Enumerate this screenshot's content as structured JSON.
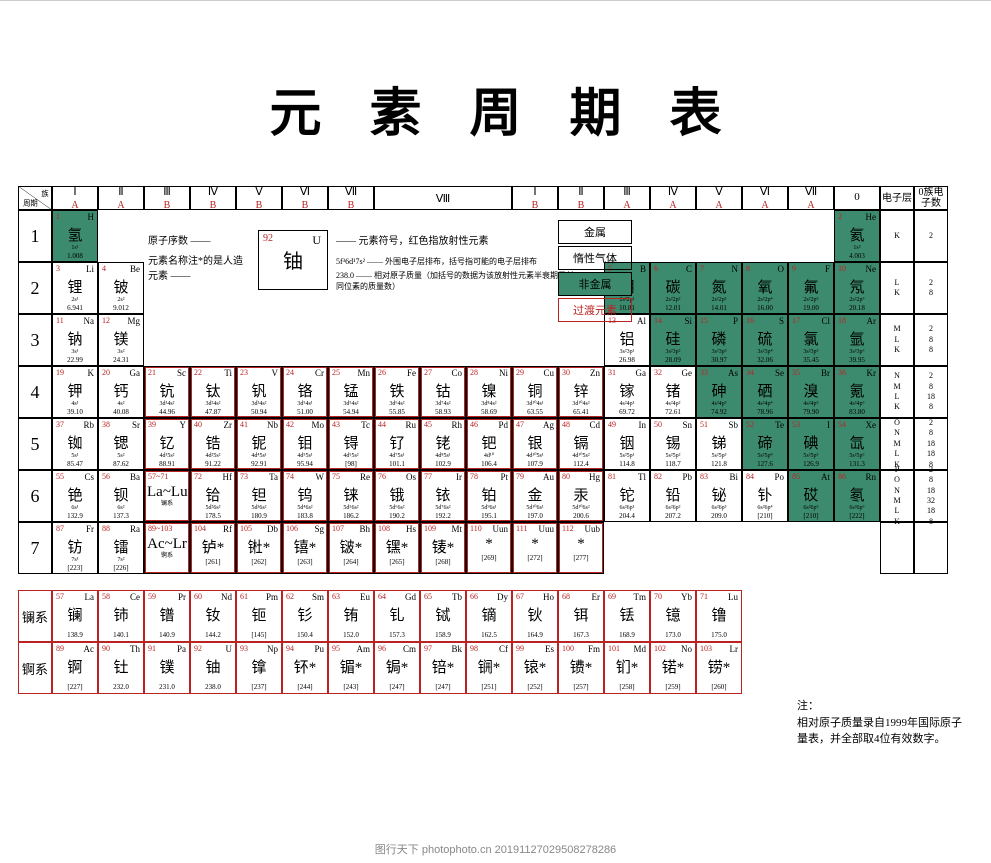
{
  "title": "元素周期表",
  "corner_top": "族",
  "corner_bottom": "周期",
  "shell_hdr1": "电子层",
  "shell_hdr2": "0族电子数",
  "legend": {
    "sample_num": "92",
    "sample_sym": "U",
    "sample_cn": "铀",
    "l1_left": "原子序数",
    "l1_right": "元素符号，红色指放射性元素",
    "l2_left": "元素名称注*的是人造元素",
    "l3_right": "外围电子层排布，括号指可能的电子层排布",
    "l4_right": "相对原子质量（加括号的数据为该放射性元素半衰期最长同位素的质量数）",
    "l3_left_a": "5f³6d¹7s²",
    "l3_left_b": "238.0",
    "cat_metal": "金属",
    "cat_noble": "惰性气体",
    "cat_nonmetal": "非金属",
    "cat_transition": "过渡元素"
  },
  "group_headers": [
    {
      "roman": "Ⅰ",
      "ab": "A"
    },
    {
      "roman": "Ⅱ",
      "ab": "A"
    },
    {
      "roman": "Ⅲ",
      "ab": "B"
    },
    {
      "roman": "Ⅳ",
      "ab": "B"
    },
    {
      "roman": "Ⅴ",
      "ab": "B"
    },
    {
      "roman": "Ⅵ",
      "ab": "B"
    },
    {
      "roman": "Ⅶ",
      "ab": "B"
    },
    {
      "roman": "Ⅷ",
      "ab": ""
    },
    {
      "roman": "",
      "ab": ""
    },
    {
      "roman": "",
      "ab": ""
    },
    {
      "roman": "Ⅰ",
      "ab": "B"
    },
    {
      "roman": "Ⅱ",
      "ab": "B"
    },
    {
      "roman": "Ⅲ",
      "ab": "A"
    },
    {
      "roman": "Ⅳ",
      "ab": "A"
    },
    {
      "roman": "Ⅴ",
      "ab": "A"
    },
    {
      "roman": "Ⅵ",
      "ab": "A"
    },
    {
      "roman": "Ⅶ",
      "ab": "A"
    },
    {
      "roman": "0",
      "ab": ""
    }
  ],
  "periods": [
    "1",
    "2",
    "3",
    "4",
    "5",
    "6",
    "7"
  ],
  "shells": [
    {
      "layers": "K",
      "counts": "2"
    },
    {
      "layers": "L\nK",
      "counts": "2\n8"
    },
    {
      "layers": "M\nL\nK",
      "counts": "2\n8\n8"
    },
    {
      "layers": "N\nM\nL\nK",
      "counts": "2\n8\n18\n8"
    },
    {
      "layers": "O\nN\nM\nL\nK",
      "counts": "2\n8\n18\n18\n8"
    },
    {
      "layers": "P\nO\nN\nM\nL\nK",
      "counts": "2\n8\n18\n32\n18\n8"
    },
    {
      "layers": "",
      "counts": ""
    }
  ],
  "elements": {
    "1-1": {
      "n": "1",
      "s": "H",
      "cn": "氢",
      "cfg": "1s¹",
      "m": "1.008",
      "cat": "nonmetal"
    },
    "1-18": {
      "n": "2",
      "s": "He",
      "cn": "氦",
      "cfg": "1s²",
      "m": "4.003",
      "cat": "nonmetal"
    },
    "2-1": {
      "n": "3",
      "s": "Li",
      "cn": "锂",
      "cfg": "2s¹",
      "m": "6.941"
    },
    "2-2": {
      "n": "4",
      "s": "Be",
      "cn": "铍",
      "cfg": "2s²",
      "m": "9.012"
    },
    "2-13": {
      "n": "5",
      "s": "B",
      "cn": "硼",
      "cfg": "2s²2p¹",
      "m": "10.81",
      "cat": "nonmetal"
    },
    "2-14": {
      "n": "6",
      "s": "C",
      "cn": "碳",
      "cfg": "2s²2p²",
      "m": "12.01",
      "cat": "nonmetal"
    },
    "2-15": {
      "n": "7",
      "s": "N",
      "cn": "氮",
      "cfg": "2s²2p³",
      "m": "14.01",
      "cat": "nonmetal"
    },
    "2-16": {
      "n": "8",
      "s": "O",
      "cn": "氧",
      "cfg": "2s²2p⁴",
      "m": "16.00",
      "cat": "nonmetal"
    },
    "2-17": {
      "n": "9",
      "s": "F",
      "cn": "氟",
      "cfg": "2s²2p⁵",
      "m": "19.00",
      "cat": "nonmetal"
    },
    "2-18": {
      "n": "10",
      "s": "Ne",
      "cn": "氖",
      "cfg": "2s²2p⁶",
      "m": "20.18",
      "cat": "nonmetal"
    },
    "3-1": {
      "n": "11",
      "s": "Na",
      "cn": "钠",
      "cfg": "3s¹",
      "m": "22.99"
    },
    "3-2": {
      "n": "12",
      "s": "Mg",
      "cn": "镁",
      "cfg": "3s²",
      "m": "24.31"
    },
    "3-13": {
      "n": "13",
      "s": "Al",
      "cn": "铝",
      "cfg": "3s²3p¹",
      "m": "26.98"
    },
    "3-14": {
      "n": "14",
      "s": "Si",
      "cn": "硅",
      "cfg": "3s²3p²",
      "m": "28.09",
      "cat": "nonmetal"
    },
    "3-15": {
      "n": "15",
      "s": "P",
      "cn": "磷",
      "cfg": "3s²3p³",
      "m": "30.97",
      "cat": "nonmetal"
    },
    "3-16": {
      "n": "16",
      "s": "S",
      "cn": "硫",
      "cfg": "3s²3p⁴",
      "m": "32.06",
      "cat": "nonmetal"
    },
    "3-17": {
      "n": "17",
      "s": "Cl",
      "cn": "氯",
      "cfg": "3s²3p⁵",
      "m": "35.45",
      "cat": "nonmetal"
    },
    "3-18": {
      "n": "18",
      "s": "Ar",
      "cn": "氩",
      "cfg": "3s²3p⁶",
      "m": "39.95",
      "cat": "nonmetal"
    },
    "4-1": {
      "n": "19",
      "s": "K",
      "cn": "钾",
      "cfg": "4s¹",
      "m": "39.10"
    },
    "4-2": {
      "n": "20",
      "s": "Ga",
      "cn": "钙",
      "cfg": "4s²",
      "m": "40.08"
    },
    "4-3": {
      "n": "21",
      "s": "Sc",
      "cn": "钪",
      "cfg": "3d¹4s²",
      "m": "44.96",
      "cat": "transition"
    },
    "4-4": {
      "n": "22",
      "s": "Ti",
      "cn": "钛",
      "cfg": "3d²4s²",
      "m": "47.87",
      "cat": "transition"
    },
    "4-5": {
      "n": "23",
      "s": "V",
      "cn": "钒",
      "cfg": "3d³4s²",
      "m": "50.94",
      "cat": "transition"
    },
    "4-6": {
      "n": "24",
      "s": "Cr",
      "cn": "铬",
      "cfg": "3d⁵4s¹",
      "m": "51.00",
      "cat": "transition"
    },
    "4-7": {
      "n": "25",
      "s": "Mn",
      "cn": "锰",
      "cfg": "3d⁵4s²",
      "m": "54.94",
      "cat": "transition"
    },
    "4-8": {
      "n": "26",
      "s": "Fe",
      "cn": "铁",
      "cfg": "3d⁶4s²",
      "m": "55.85",
      "cat": "transition"
    },
    "4-9": {
      "n": "27",
      "s": "Co",
      "cn": "钴",
      "cfg": "3d⁷4s²",
      "m": "58.93",
      "cat": "transition"
    },
    "4-10": {
      "n": "28",
      "s": "Ni",
      "cn": "镍",
      "cfg": "3d⁸4s²",
      "m": "58.69",
      "cat": "transition"
    },
    "4-11": {
      "n": "29",
      "s": "Cu",
      "cn": "铜",
      "cfg": "3d¹⁰4s¹",
      "m": "63.55",
      "cat": "transition"
    },
    "4-12": {
      "n": "30",
      "s": "Zn",
      "cn": "锌",
      "cfg": "3d¹⁰4s²",
      "m": "65.41",
      "cat": "transition"
    },
    "4-13": {
      "n": "31",
      "s": "Ga",
      "cn": "镓",
      "cfg": "4s²4p¹",
      "m": "69.72"
    },
    "4-14": {
      "n": "32",
      "s": "Ge",
      "cn": "锗",
      "cfg": "4s²4p²",
      "m": "72.61"
    },
    "4-15": {
      "n": "33",
      "s": "As",
      "cn": "砷",
      "cfg": "4s²4p³",
      "m": "74.92",
      "cat": "nonmetal"
    },
    "4-16": {
      "n": "34",
      "s": "Se",
      "cn": "硒",
      "cfg": "4s²4p⁴",
      "m": "78.96",
      "cat": "nonmetal"
    },
    "4-17": {
      "n": "35",
      "s": "Br",
      "cn": "溴",
      "cfg": "4s²4p⁵",
      "m": "79.90",
      "cat": "nonmetal"
    },
    "4-18": {
      "n": "36",
      "s": "Kr",
      "cn": "氪",
      "cfg": "4s²4p⁶",
      "m": "83.80",
      "cat": "nonmetal"
    },
    "5-1": {
      "n": "37",
      "s": "Rb",
      "cn": "铷",
      "cfg": "5s¹",
      "m": "85.47"
    },
    "5-2": {
      "n": "38",
      "s": "Sr",
      "cn": "锶",
      "cfg": "5s²",
      "m": "87.62"
    },
    "5-3": {
      "n": "39",
      "s": "Y",
      "cn": "钇",
      "cfg": "4d¹5s²",
      "m": "88.91",
      "cat": "transition"
    },
    "5-4": {
      "n": "40",
      "s": "Zr",
      "cn": "锆",
      "cfg": "4d²5s²",
      "m": "91.22",
      "cat": "transition"
    },
    "5-5": {
      "n": "41",
      "s": "Nb",
      "cn": "铌",
      "cfg": "4d⁴5s¹",
      "m": "92.91",
      "cat": "transition"
    },
    "5-6": {
      "n": "42",
      "s": "Mo",
      "cn": "钼",
      "cfg": "4d⁵5s¹",
      "m": "95.94",
      "cat": "transition"
    },
    "5-7": {
      "n": "43",
      "s": "Tc",
      "cn": "锝",
      "cfg": "4d⁵5s²",
      "m": "[98]",
      "cat": "transition"
    },
    "5-8": {
      "n": "44",
      "s": "Ru",
      "cn": "钌",
      "cfg": "4d⁷5s¹",
      "m": "101.1",
      "cat": "transition"
    },
    "5-9": {
      "n": "45",
      "s": "Rh",
      "cn": "铑",
      "cfg": "4d⁸5s¹",
      "m": "102.9",
      "cat": "transition"
    },
    "5-10": {
      "n": "46",
      "s": "Pd",
      "cn": "钯",
      "cfg": "4d¹⁰",
      "m": "106.4",
      "cat": "transition"
    },
    "5-11": {
      "n": "47",
      "s": "Ag",
      "cn": "银",
      "cfg": "4d¹⁰5s¹",
      "m": "107.9",
      "cat": "transition"
    },
    "5-12": {
      "n": "48",
      "s": "Cd",
      "cn": "镉",
      "cfg": "4d¹⁰5s²",
      "m": "112.4",
      "cat": "transition"
    },
    "5-13": {
      "n": "49",
      "s": "In",
      "cn": "铟",
      "cfg": "5s²5p¹",
      "m": "114.8"
    },
    "5-14": {
      "n": "50",
      "s": "Sn",
      "cn": "锡",
      "cfg": "5s²5p²",
      "m": "118.7"
    },
    "5-15": {
      "n": "51",
      "s": "Sb",
      "cn": "锑",
      "cfg": "5s²5p³",
      "m": "121.8"
    },
    "5-16": {
      "n": "52",
      "s": "Te",
      "cn": "碲",
      "cfg": "5s²5p⁴",
      "m": "127.6",
      "cat": "nonmetal"
    },
    "5-17": {
      "n": "53",
      "s": "I",
      "cn": "碘",
      "cfg": "5s²5p⁵",
      "m": "126.9",
      "cat": "nonmetal"
    },
    "5-18": {
      "n": "54",
      "s": "Xe",
      "cn": "氙",
      "cfg": "5s²5p⁶",
      "m": "131.3",
      "cat": "nonmetal"
    },
    "6-1": {
      "n": "55",
      "s": "Cs",
      "cn": "铯",
      "cfg": "6s¹",
      "m": "132.9"
    },
    "6-2": {
      "n": "56",
      "s": "Ba",
      "cn": "钡",
      "cfg": "6s²",
      "m": "137.3"
    },
    "6-3": {
      "n": "57~71",
      "s": "",
      "cn": "La~Lu",
      "cfg": "镧系",
      "m": "",
      "cat": "transition"
    },
    "6-4": {
      "n": "72",
      "s": "Hf",
      "cn": "铪",
      "cfg": "5d²6s²",
      "m": "178.5",
      "cat": "transition"
    },
    "6-5": {
      "n": "73",
      "s": "Ta",
      "cn": "钽",
      "cfg": "5d³6s²",
      "m": "180.9",
      "cat": "transition"
    },
    "6-6": {
      "n": "74",
      "s": "W",
      "cn": "钨",
      "cfg": "5d⁴6s²",
      "m": "183.8",
      "cat": "transition"
    },
    "6-7": {
      "n": "75",
      "s": "Re",
      "cn": "铼",
      "cfg": "5d⁵6s²",
      "m": "186.2",
      "cat": "transition"
    },
    "6-8": {
      "n": "76",
      "s": "Os",
      "cn": "锇",
      "cfg": "5d⁶6s²",
      "m": "190.2",
      "cat": "transition"
    },
    "6-9": {
      "n": "77",
      "s": "Ir",
      "cn": "铱",
      "cfg": "5d⁷6s²",
      "m": "192.2",
      "cat": "transition"
    },
    "6-10": {
      "n": "78",
      "s": "Pt",
      "cn": "铂",
      "cfg": "5d⁹6s¹",
      "m": "195.1",
      "cat": "transition"
    },
    "6-11": {
      "n": "79",
      "s": "Au",
      "cn": "金",
      "cfg": "5d¹⁰6s¹",
      "m": "197.0",
      "cat": "transition"
    },
    "6-12": {
      "n": "80",
      "s": "Hg",
      "cn": "汞",
      "cfg": "5d¹⁰6s²",
      "m": "200.6",
      "cat": "transition"
    },
    "6-13": {
      "n": "81",
      "s": "Tl",
      "cn": "铊",
      "cfg": "6s²6p¹",
      "m": "204.4"
    },
    "6-14": {
      "n": "82",
      "s": "Pb",
      "cn": "铅",
      "cfg": "6s²6p²",
      "m": "207.2"
    },
    "6-15": {
      "n": "83",
      "s": "Bi",
      "cn": "铋",
      "cfg": "6s²6p³",
      "m": "209.0"
    },
    "6-16": {
      "n": "84",
      "s": "Po",
      "cn": "钋",
      "cfg": "6s²6p⁴",
      "m": "[210]"
    },
    "6-17": {
      "n": "85",
      "s": "At",
      "cn": "砹",
      "cfg": "6s²6p⁵",
      "m": "[210]",
      "cat": "nonmetal"
    },
    "6-18": {
      "n": "86",
      "s": "Rn",
      "cn": "氡",
      "cfg": "6s²6p⁶",
      "m": "[222]",
      "cat": "nonmetal"
    },
    "7-1": {
      "n": "87",
      "s": "Fr",
      "cn": "钫",
      "cfg": "7s¹",
      "m": "[223]"
    },
    "7-2": {
      "n": "88",
      "s": "Ra",
      "cn": "镭",
      "cfg": "7s²",
      "m": "[226]"
    },
    "7-3": {
      "n": "89~103",
      "s": "",
      "cn": "Ac~Lr",
      "cfg": "锕系",
      "m": "",
      "cat": "transition"
    },
    "7-4": {
      "n": "104",
      "s": "Rf",
      "cn": "𬬻*",
      "cfg": "",
      "m": "[261]",
      "cat": "transition"
    },
    "7-5": {
      "n": "105",
      "s": "Db",
      "cn": "𬭊*",
      "cfg": "",
      "m": "[262]",
      "cat": "transition"
    },
    "7-6": {
      "n": "106",
      "s": "Sg",
      "cn": "𬭳*",
      "cfg": "",
      "m": "[263]",
      "cat": "transition"
    },
    "7-7": {
      "n": "107",
      "s": "Bh",
      "cn": "𬭛*",
      "cfg": "",
      "m": "[264]",
      "cat": "transition"
    },
    "7-8": {
      "n": "108",
      "s": "Hs",
      "cn": "𬭶*",
      "cfg": "",
      "m": "[265]",
      "cat": "transition"
    },
    "7-9": {
      "n": "109",
      "s": "Mt",
      "cn": "鿏*",
      "cfg": "",
      "m": "[268]",
      "cat": "transition"
    },
    "7-10": {
      "n": "110",
      "s": "Uun",
      "cn": "*",
      "cfg": "",
      "m": "[269]",
      "cat": "transition"
    },
    "7-11": {
      "n": "111",
      "s": "Uuu",
      "cn": "*",
      "cfg": "",
      "m": "[272]",
      "cat": "transition"
    },
    "7-12": {
      "n": "112",
      "s": "Uub",
      "cn": "*",
      "cfg": "",
      "m": "[277]",
      "cat": "transition"
    }
  },
  "lan_label": "镧系",
  "act_label": "锕系",
  "lan": [
    {
      "n": "57",
      "s": "La",
      "cn": "镧",
      "m": "138.9"
    },
    {
      "n": "58",
      "s": "Ce",
      "cn": "铈",
      "m": "140.1"
    },
    {
      "n": "59",
      "s": "Pr",
      "cn": "镨",
      "m": "140.9"
    },
    {
      "n": "60",
      "s": "Nd",
      "cn": "钕",
      "m": "144.2"
    },
    {
      "n": "61",
      "s": "Pm",
      "cn": "钷",
      "m": "[145]"
    },
    {
      "n": "62",
      "s": "Sm",
      "cn": "钐",
      "m": "150.4"
    },
    {
      "n": "63",
      "s": "Eu",
      "cn": "铕",
      "m": "152.0"
    },
    {
      "n": "64",
      "s": "Gd",
      "cn": "钆",
      "m": "157.3"
    },
    {
      "n": "65",
      "s": "Tb",
      "cn": "铽",
      "m": "158.9"
    },
    {
      "n": "66",
      "s": "Dy",
      "cn": "镝",
      "m": "162.5"
    },
    {
      "n": "67",
      "s": "Ho",
      "cn": "钬",
      "m": "164.9"
    },
    {
      "n": "68",
      "s": "Er",
      "cn": "铒",
      "m": "167.3"
    },
    {
      "n": "69",
      "s": "Tm",
      "cn": "铥",
      "m": "168.9"
    },
    {
      "n": "70",
      "s": "Yb",
      "cn": "镱",
      "m": "173.0"
    },
    {
      "n": "71",
      "s": "Lu",
      "cn": "镥",
      "m": "175.0"
    }
  ],
  "act": [
    {
      "n": "89",
      "s": "Ac",
      "cn": "锕",
      "m": "[227]"
    },
    {
      "n": "90",
      "s": "Th",
      "cn": "钍",
      "m": "232.0"
    },
    {
      "n": "91",
      "s": "Pa",
      "cn": "镤",
      "m": "231.0"
    },
    {
      "n": "92",
      "s": "U",
      "cn": "铀",
      "m": "238.0"
    },
    {
      "n": "93",
      "s": "Np",
      "cn": "镎",
      "m": "[237]"
    },
    {
      "n": "94",
      "s": "Pu",
      "cn": "钚*",
      "m": "[244]"
    },
    {
      "n": "95",
      "s": "Am",
      "cn": "镅*",
      "m": "[243]"
    },
    {
      "n": "96",
      "s": "Cm",
      "cn": "锔*",
      "m": "[247]"
    },
    {
      "n": "97",
      "s": "Bk",
      "cn": "锫*",
      "m": "[247]"
    },
    {
      "n": "98",
      "s": "Cf",
      "cn": "锎*",
      "m": "[251]"
    },
    {
      "n": "99",
      "s": "Es",
      "cn": "锿*",
      "m": "[252]"
    },
    {
      "n": "100",
      "s": "Fm",
      "cn": "镄*",
      "m": "[257]"
    },
    {
      "n": "101",
      "s": "Md",
      "cn": "钔*",
      "m": "[258]"
    },
    {
      "n": "102",
      "s": "No",
      "cn": "锘*",
      "m": "[259]"
    },
    {
      "n": "103",
      "s": "Lr",
      "cn": "铹*",
      "m": "[260]"
    }
  ],
  "note_title": "注：",
  "note_body": "相对原子质量录自1999年国际原子量表，并全部取4位有效数字。",
  "footer": "图行天下 photophoto.cn 20191127029508278286"
}
